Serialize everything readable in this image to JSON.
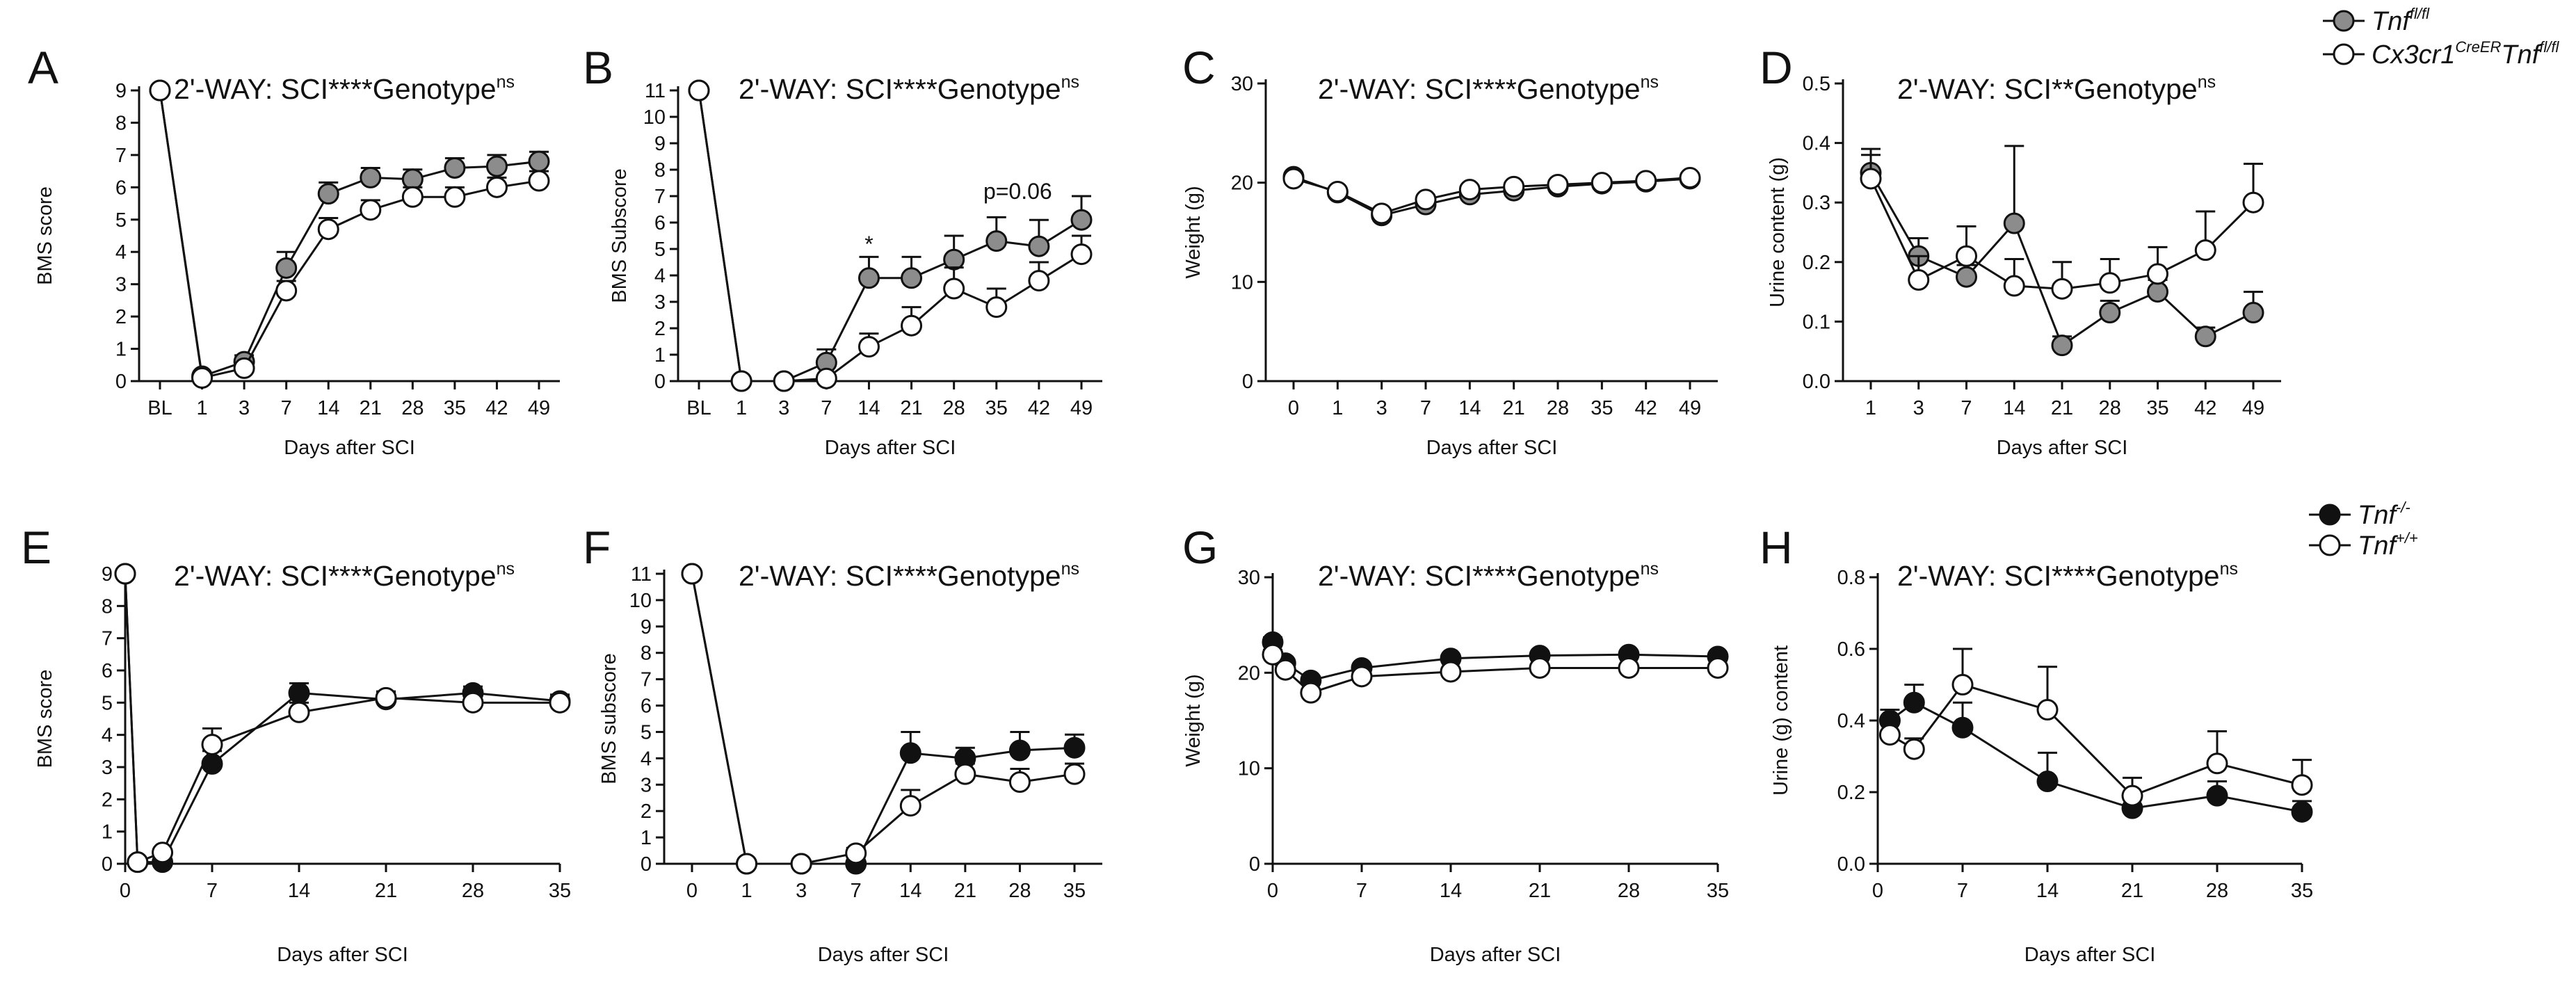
{
  "colors": {
    "wt": "#8c8c8c",
    "ko": "#ffffff",
    "black": "#111111",
    "stroke": "#111111"
  },
  "legends": [
    {
      "key": "legend-top",
      "entries": [
        {
          "text": "Tnf",
          "sup": "fl/fl",
          "fill": "grey"
        },
        {
          "text": "Cx3cr1",
          "sup": "CreER",
          "text2": "Tnf",
          "sup2": "fl/fl",
          "fill": "white"
        }
      ]
    },
    {
      "key": "legend-bottom",
      "entries": [
        {
          "text": "Tnf",
          "sup": "-/-",
          "fill": "black"
        },
        {
          "text": "Tnf",
          "sup": "+/+",
          "fill": "white"
        }
      ]
    }
  ],
  "chart_data": [
    {
      "id": "A",
      "type": "line",
      "letter": "A",
      "title": "2'-WAY: SCI****Genotype",
      "title_sup": "ns",
      "xlabel": "Days after SCI",
      "ylabel": "BMS score",
      "categories": [
        "BL",
        "1",
        "3",
        "7",
        "14",
        "21",
        "28",
        "35",
        "42",
        "49"
      ],
      "ylim": [
        0,
        9
      ],
      "yticks": [
        "0",
        "1",
        "2",
        "3",
        "4",
        "5",
        "6",
        "7",
        "8",
        "9"
      ],
      "series": [
        {
          "name": "Tnf fl/fl",
          "fill": "grey",
          "values": [
            9,
            0.15,
            0.6,
            3.5,
            5.8,
            6.3,
            6.25,
            6.6,
            6.65,
            6.8
          ],
          "err": [
            0,
            0.1,
            0.2,
            0.5,
            0.35,
            0.3,
            0.3,
            0.3,
            0.35,
            0.3
          ]
        },
        {
          "name": "Cx3cr1 CreER Tnf fl/fl",
          "fill": "white",
          "values": [
            9,
            0.1,
            0.4,
            2.8,
            4.7,
            5.3,
            5.7,
            5.7,
            6.0,
            6.2
          ],
          "err": [
            0,
            0.1,
            0.15,
            0.3,
            0.35,
            0.3,
            0.3,
            0.3,
            0.3,
            0.3
          ]
        }
      ]
    },
    {
      "id": "B",
      "type": "line",
      "letter": "B",
      "title": "2'-WAY: SCI****Genotype",
      "title_sup": "ns",
      "xlabel": "Days after SCI",
      "ylabel": "BMS Subscore",
      "categories": [
        "BL",
        "1",
        "3",
        "7",
        "14",
        "21",
        "28",
        "35",
        "42",
        "49"
      ],
      "ylim": [
        0,
        11
      ],
      "yticks": [
        "0",
        "1",
        "2",
        "3",
        "4",
        "5",
        "6",
        "7",
        "8",
        "9",
        "10",
        "11"
      ],
      "annotations": [
        {
          "text": "*",
          "cat": 4,
          "y": 4.9
        },
        {
          "text": "p=0.06",
          "cat": 7.5,
          "y": 6.9
        }
      ],
      "series": [
        {
          "name": "Tnf fl/fl",
          "fill": "grey",
          "values": [
            11,
            0,
            0,
            0.7,
            3.9,
            3.9,
            4.6,
            5.3,
            5.1,
            6.1
          ],
          "err": [
            0,
            0,
            0,
            0.5,
            0.8,
            0.8,
            0.9,
            0.9,
            1.0,
            0.9
          ]
        },
        {
          "name": "Cx3cr1 CreER Tnf fl/fl",
          "fill": "white",
          "values": [
            11,
            0,
            0,
            0.1,
            1.3,
            2.1,
            3.5,
            2.8,
            3.8,
            4.8
          ],
          "err": [
            0,
            0,
            0,
            0.1,
            0.5,
            0.7,
            0.8,
            0.7,
            0.7,
            0.7
          ]
        }
      ]
    },
    {
      "id": "C",
      "type": "line",
      "letter": "C",
      "title": "2'-WAY: SCI****Genotype",
      "title_sup": "ns",
      "xlabel": "Days after SCI",
      "ylabel": "Weight (g)",
      "categories": [
        "0",
        "1",
        "3",
        "7",
        "14",
        "21",
        "28",
        "35",
        "42",
        "49"
      ],
      "ylim": [
        0,
        30
      ],
      "yticks": [
        "0",
        "10",
        "20",
        "30"
      ],
      "series": [
        {
          "name": "Tnf fl/fl",
          "fill": "grey",
          "values": [
            20.6,
            19.0,
            16.7,
            17.8,
            18.8,
            19.2,
            19.6,
            19.9,
            20.1,
            20.4
          ],
          "err": [
            0.4,
            0.3,
            0.4,
            0.4,
            0.4,
            0.4,
            0.4,
            0.4,
            0.4,
            0.4
          ]
        },
        {
          "name": "Cx3cr1 CreER Tnf fl/fl",
          "fill": "white",
          "values": [
            20.4,
            19.1,
            16.9,
            18.3,
            19.3,
            19.6,
            19.8,
            20.0,
            20.2,
            20.5
          ],
          "err": [
            0.4,
            0.3,
            0.4,
            0.4,
            0.4,
            0.4,
            0.4,
            0.4,
            0.4,
            0.4
          ]
        }
      ]
    },
    {
      "id": "D",
      "type": "line",
      "letter": "D",
      "title": "2'-WAY: SCI**Genotype",
      "title_sup": "ns",
      "xlabel": "Days after SCI",
      "ylabel": "Urine content (g)",
      "categories": [
        "1",
        "3",
        "7",
        "14",
        "21",
        "28",
        "35",
        "42",
        "49"
      ],
      "ylim": [
        0,
        0.5
      ],
      "yticks": [
        "0.0",
        "0.1",
        "0.2",
        "0.3",
        "0.4",
        "0.5"
      ],
      "series": [
        {
          "name": "Tnf fl/fl",
          "fill": "grey",
          "values": [
            0.35,
            0.21,
            0.175,
            0.265,
            0.06,
            0.115,
            0.15,
            0.075,
            0.115
          ],
          "err": [
            0.04,
            0.03,
            0.02,
            0.13,
            0.015,
            0.02,
            0.02,
            0.015,
            0.035
          ]
        },
        {
          "name": "Cx3cr1 CreER Tnf fl/fl",
          "fill": "white",
          "values": [
            0.34,
            0.17,
            0.21,
            0.16,
            0.155,
            0.165,
            0.18,
            0.22,
            0.3
          ],
          "err": [
            0.04,
            0.04,
            0.05,
            0.045,
            0.045,
            0.04,
            0.045,
            0.065,
            0.065
          ]
        }
      ]
    },
    {
      "id": "E",
      "type": "line",
      "letter": "E",
      "title": "2'-WAY: SCI****Genotype",
      "title_sup": "ns",
      "xlabel": "Days after SCI",
      "ylabel": "BMS score",
      "x": [
        0,
        1,
        3,
        7,
        14,
        21,
        28,
        35
      ],
      "xlim": [
        0,
        35
      ],
      "xticks": [
        0,
        7,
        14,
        21,
        28,
        35
      ],
      "ylim": [
        0,
        9
      ],
      "yticks": [
        "0",
        "1",
        "2",
        "3",
        "4",
        "5",
        "6",
        "7",
        "8",
        "9"
      ],
      "series": [
        {
          "name": "Tnf -/-",
          "fill": "black",
          "values": [
            9,
            0.05,
            0.05,
            3.1,
            5.3,
            5.1,
            5.3,
            5.05
          ],
          "err": [
            0,
            0.05,
            0.05,
            0.4,
            0.3,
            0.2,
            0.2,
            0.2
          ]
        },
        {
          "name": "Tnf +/+",
          "fill": "white",
          "values": [
            9,
            0.05,
            0.35,
            3.7,
            4.7,
            5.15,
            5.0,
            5.0
          ],
          "err": [
            0,
            0.05,
            0.1,
            0.5,
            0.3,
            0.2,
            0.2,
            0.2
          ]
        }
      ]
    },
    {
      "id": "F",
      "type": "line",
      "letter": "F",
      "title": "2'-WAY: SCI****Genotype",
      "title_sup": "ns",
      "xlabel": "Days after SCI",
      "ylabel": "BMS subscore",
      "categories": [
        "0",
        "1",
        "3",
        "7",
        "14",
        "21",
        "28",
        "35"
      ],
      "ylim": [
        0,
        11
      ],
      "yticks": [
        "0",
        "1",
        "2",
        "3",
        "4",
        "5",
        "6",
        "7",
        "8",
        "9",
        "10",
        "11"
      ],
      "series": [
        {
          "name": "Tnf -/-",
          "fill": "black",
          "values": [
            11,
            0,
            0,
            0,
            4.2,
            4.0,
            4.3,
            4.4
          ],
          "err": [
            0,
            0,
            0,
            0,
            0.8,
            0.4,
            0.7,
            0.5
          ]
        },
        {
          "name": "Tnf +/+",
          "fill": "white",
          "values": [
            11,
            0,
            0,
            0.4,
            2.2,
            3.4,
            3.1,
            3.4
          ],
          "err": [
            0,
            0,
            0,
            0.2,
            0.6,
            0.4,
            0.5,
            0.4
          ]
        }
      ]
    },
    {
      "id": "G",
      "type": "line",
      "letter": "G",
      "title": "2'-WAY: SCI****Genotype",
      "title_sup": "ns",
      "xlabel": "Days after SCI",
      "ylabel": "Weight (g)",
      "x": [
        0,
        1,
        3,
        7,
        14,
        21,
        28,
        35
      ],
      "xlim": [
        0,
        35
      ],
      "xticks": [
        0,
        7,
        14,
        21,
        28,
        35
      ],
      "ylim": [
        0,
        30
      ],
      "yticks": [
        "0",
        "10",
        "20",
        "30"
      ],
      "series": [
        {
          "name": "Tnf -/-",
          "fill": "black",
          "values": [
            23.2,
            21.0,
            19.2,
            20.5,
            21.5,
            21.8,
            21.9,
            21.7
          ],
          "err": [
            0.5,
            0.4,
            0.4,
            0.4,
            0.4,
            0.4,
            0.4,
            0.4
          ]
        },
        {
          "name": "Tnf +/+",
          "fill": "white",
          "values": [
            21.9,
            20.3,
            17.9,
            19.6,
            20.1,
            20.5,
            20.5,
            20.5
          ],
          "err": [
            0.5,
            0.4,
            0.4,
            0.4,
            0.4,
            0.4,
            0.4,
            0.4
          ]
        }
      ]
    },
    {
      "id": "H",
      "type": "line",
      "letter": "H",
      "title": "2'-WAY: SCI****Genotype",
      "title_sup": "ns",
      "xlabel": "Days after SCI",
      "ylabel": "Urine (g) content",
      "x": [
        1,
        3,
        7,
        14,
        21,
        28,
        35
      ],
      "xlim": [
        0,
        35
      ],
      "xticks": [
        0,
        7,
        14,
        21,
        28,
        35
      ],
      "ylim": [
        0,
        0.8
      ],
      "yticks": [
        "0.0",
        "0.2",
        "0.4",
        "0.6",
        "0.8"
      ],
      "series": [
        {
          "name": "Tnf -/-",
          "fill": "black",
          "values": [
            0.4,
            0.45,
            0.38,
            0.23,
            0.155,
            0.19,
            0.145
          ],
          "err": [
            0.03,
            0.05,
            0.07,
            0.08,
            0.03,
            0.04,
            0.03
          ]
        },
        {
          "name": "Tnf +/+",
          "fill": "white",
          "values": [
            0.36,
            0.32,
            0.5,
            0.43,
            0.19,
            0.28,
            0.22
          ],
          "err": [
            0.03,
            0.03,
            0.1,
            0.12,
            0.05,
            0.09,
            0.07
          ]
        }
      ]
    }
  ]
}
